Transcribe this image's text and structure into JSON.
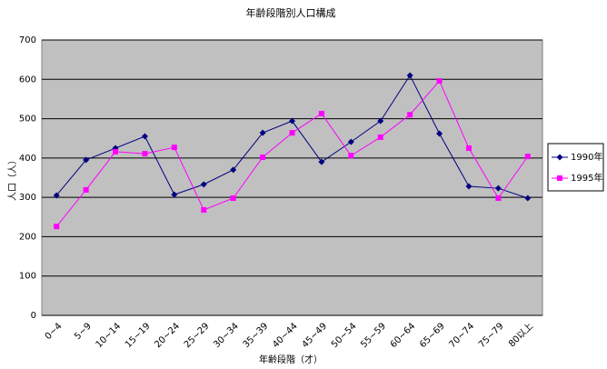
{
  "chart_data": {
    "type": "line",
    "title": "年齢段階別人口構成",
    "x_label": "年齢段階（才）",
    "y_label": "人口（人）",
    "categories": [
      "0~4",
      "5~9",
      "10~14",
      "15~19",
      "20~24",
      "25~29",
      "30~34",
      "35~39",
      "40~44",
      "45~49",
      "50~54",
      "55~59",
      "60~64",
      "65~69",
      "70~74",
      "75~79",
      "80以上"
    ],
    "series": [
      {
        "name": "1990年",
        "color": "#000080",
        "marker": "diamond",
        "values": [
          305,
          395,
          425,
          455,
          307,
          333,
          370,
          464,
          494,
          390,
          441,
          494,
          610,
          462,
          328,
          323,
          298
        ]
      },
      {
        "name": "1995年",
        "color": "#ff00ff",
        "marker": "square",
        "values": [
          226,
          319,
          416,
          411,
          427,
          268,
          298,
          402,
          464,
          513,
          406,
          453,
          510,
          596,
          425,
          298,
          404
        ]
      }
    ],
    "ylim": [
      0,
      700
    ],
    "yticks": [
      0,
      100,
      200,
      300,
      400,
      500,
      600,
      700
    ],
    "grid": true,
    "legend": "right"
  }
}
